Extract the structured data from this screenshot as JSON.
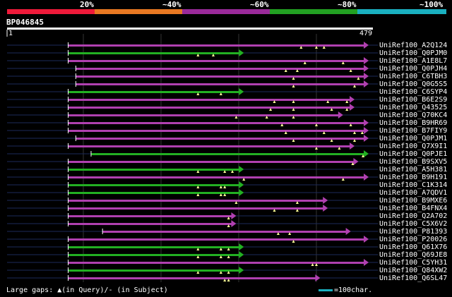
{
  "colors": {
    "bg": "#000000",
    "identity_segments": [
      "#ef1a3a",
      "#e87822",
      "#9a2a9a",
      "#22a022",
      "#1ab0c0"
    ],
    "hit_low": "#b040b0",
    "hit_high": "#22b022",
    "gap_marker": "#ffff99",
    "guide": "#1c2a5a",
    "grid": "#333333",
    "legend_bar": "#1ab0c0",
    "white": "#ffffff"
  },
  "identity_scale": {
    "labels": [
      "20%",
      "~40%",
      "~60%",
      "~80%",
      "~100%"
    ]
  },
  "query": {
    "id": "BP046845",
    "start": "1",
    "end": "479",
    "length": 479
  },
  "legend": {
    "text": "Large gaps: ▲(in Query)/- (in Subject)",
    "scale_text": "=100char."
  },
  "hits": [
    {
      "id": "UniRef100_A2Q124",
      "start": 80,
      "end": 479,
      "color": "purple",
      "gaps": [
        385,
        405,
        415
      ]
    },
    {
      "id": "UniRef100_Q0PJM0",
      "start": 80,
      "end": 310,
      "color": "green",
      "gaps": [
        250,
        270
      ]
    },
    {
      "id": "UniRef100_A1E8L7",
      "start": 80,
      "end": 495,
      "color": "purple",
      "gaps": [
        390,
        440
      ]
    },
    {
      "id": "UniRef100_Q0PJH4",
      "start": 90,
      "end": 495,
      "color": "purple",
      "gaps": [
        365,
        380,
        450
      ]
    },
    {
      "id": "UniRef100_C6TBH3",
      "start": 90,
      "end": 495,
      "color": "purple",
      "gaps": [
        375,
        460
      ]
    },
    {
      "id": "UniRef100_Q0G5S5",
      "start": 90,
      "end": 495,
      "color": "purple",
      "gaps": [
        375,
        455
      ]
    },
    {
      "id": "UniRef100_C6SYP4",
      "start": 80,
      "end": 310,
      "color": "green",
      "gaps": [
        250,
        280
      ]
    },
    {
      "id": "UniRef100_B6E2S9",
      "start": 80,
      "end": 455,
      "color": "purple",
      "gaps": [
        350,
        375,
        420,
        445
      ]
    },
    {
      "id": "UniRef100_Q43525",
      "start": 80,
      "end": 455,
      "color": "purple",
      "gaps": [
        345,
        375,
        425,
        445
      ]
    },
    {
      "id": "UniRef100_Q70KC4",
      "start": 80,
      "end": 440,
      "color": "purple",
      "gaps": [
        300,
        340,
        375
      ]
    },
    {
      "id": "UniRef100_B9HR69",
      "start": 80,
      "end": 495,
      "color": "purple",
      "gaps": [
        360,
        405,
        450
      ]
    },
    {
      "id": "UniRef100_B7FIY9",
      "start": 80,
      "end": 495,
      "color": "purple",
      "gaps": [
        365,
        415,
        455,
        465
      ]
    },
    {
      "id": "UniRef100_Q0PJM1",
      "start": 90,
      "end": 495,
      "color": "purple",
      "gaps": [
        375,
        425,
        455
      ]
    },
    {
      "id": "UniRef100_Q7X9I1",
      "start": 80,
      "end": 455,
      "color": "purple",
      "gaps": [
        405,
        435
      ]
    },
    {
      "id": "UniRef100_Q0PJE1",
      "start": 110,
      "end": 495,
      "color": "green",
      "gaps": [
        470
      ]
    },
    {
      "id": "UniRef100_B9SXV5",
      "start": 80,
      "end": 460,
      "color": "purple",
      "gaps": [
        455
      ]
    },
    {
      "id": "UniRef100_A5H381",
      "start": 80,
      "end": 310,
      "color": "green",
      "gaps": [
        250,
        285,
        295
      ]
    },
    {
      "id": "UniRef100_B9H191",
      "start": 80,
      "end": 479,
      "color": "purple",
      "gaps": [
        310,
        440
      ]
    },
    {
      "id": "UniRef100_C1K314",
      "start": 80,
      "end": 310,
      "color": "green",
      "gaps": [
        250,
        280,
        285
      ]
    },
    {
      "id": "UniRef100_A7QDV1",
      "start": 80,
      "end": 310,
      "color": "green",
      "gaps": [
        250,
        280,
        285
      ]
    },
    {
      "id": "UniRef100_B9MXE6",
      "start": 80,
      "end": 420,
      "color": "purple",
      "gaps": [
        300,
        380
      ]
    },
    {
      "id": "UniRef100_B4FNX4",
      "start": 80,
      "end": 420,
      "color": "purple",
      "gaps": [
        350,
        380
      ]
    },
    {
      "id": "UniRef100_Q2A702",
      "start": 80,
      "end": 300,
      "color": "purple",
      "gaps": [
        290
      ]
    },
    {
      "id": "UniRef100_C5X6V2",
      "start": 80,
      "end": 300,
      "color": "purple",
      "gaps": [
        290
      ]
    },
    {
      "id": "UniRef100_P81393",
      "start": 125,
      "end": 450,
      "color": "purple",
      "gaps": [
        355,
        370
      ]
    },
    {
      "id": "UniRef100_P20026",
      "start": 80,
      "end": 479,
      "color": "purple",
      "gaps": [
        375
      ]
    },
    {
      "id": "UniRef100_Q61X76",
      "start": 80,
      "end": 310,
      "color": "green",
      "gaps": [
        250,
        280,
        290
      ]
    },
    {
      "id": "UniRef100_Q69JE8",
      "start": 80,
      "end": 310,
      "color": "green",
      "gaps": [
        250,
        280,
        290
      ]
    },
    {
      "id": "UniRef100_C5YH31",
      "start": 80,
      "end": 479,
      "color": "purple",
      "gaps": [
        400,
        405
      ]
    },
    {
      "id": "UniRef100_Q84XW2",
      "start": 80,
      "end": 310,
      "color": "green",
      "gaps": [
        250,
        280,
        290
      ]
    },
    {
      "id": "UniRef100_Q6SL47",
      "start": 80,
      "end": 410,
      "color": "purple",
      "gaps": [
        285,
        290
      ]
    }
  ]
}
